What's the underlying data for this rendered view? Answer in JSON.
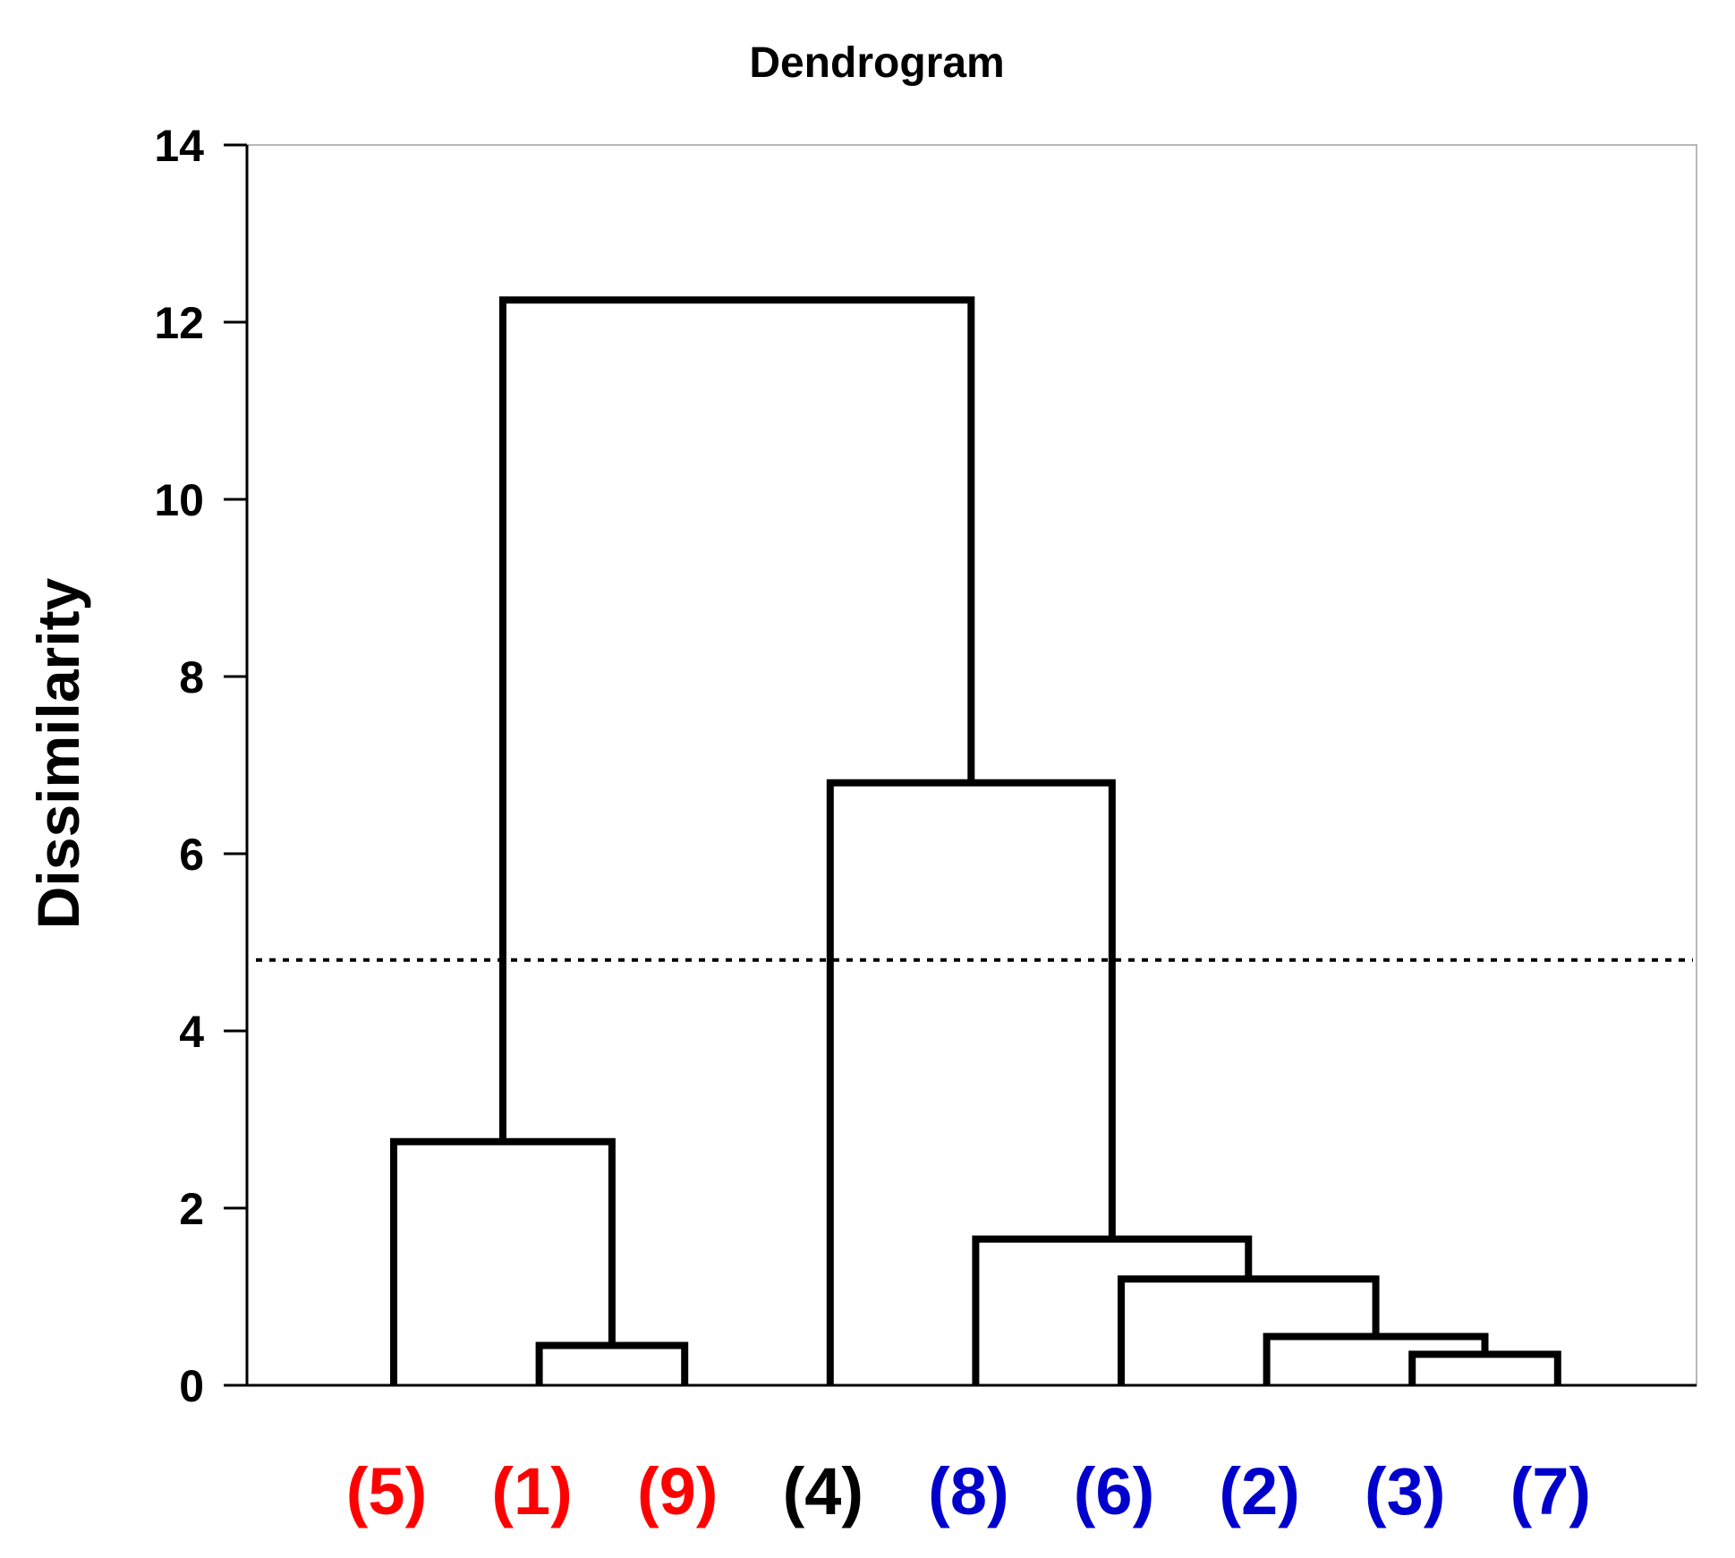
{
  "chart_data": {
    "type": "dendrogram",
    "title": "Dendrogram",
    "xlabel": "",
    "ylabel": "Dissimilarity",
    "ylim": [
      0,
      14
    ],
    "yticks": [
      0,
      2,
      4,
      6,
      8,
      10,
      12,
      14
    ],
    "cut_threshold": 4.8,
    "leaves": [
      {
        "label": "(5)",
        "color": "#ff0000"
      },
      {
        "label": "(1)",
        "color": "#ff0000"
      },
      {
        "label": "(9)",
        "color": "#ff0000"
      },
      {
        "label": "(4)",
        "color": "#000000"
      },
      {
        "label": "(8)",
        "color": "#0000cc"
      },
      {
        "label": "(6)",
        "color": "#0000cc"
      },
      {
        "label": "(2)",
        "color": "#0000cc"
      },
      {
        "label": "(3)",
        "color": "#0000cc"
      },
      {
        "label": "(7)",
        "color": "#0000cc"
      }
    ],
    "merges": [
      {
        "left": "(3)",
        "right": "(7)",
        "height": 0.35
      },
      {
        "left": "(1)",
        "right": "(9)",
        "height": 0.45
      },
      {
        "left": "(2)",
        "right": "(3)+(7)",
        "height": 0.55
      },
      {
        "left": "(6)",
        "right": "(2)+(3)+(7)",
        "height": 1.2
      },
      {
        "left": "(8)",
        "right": "(6)+(2)+(3)+(7)",
        "height": 1.65
      },
      {
        "left": "(5)",
        "right": "(1)+(9)",
        "height": 2.75
      },
      {
        "left": "(4)",
        "right": "(8)+(6)+(2)+(3)+(7)",
        "height": 6.8
      },
      {
        "left": "(5)+(1)+(9)",
        "right": "(4)+(8)+(6)+(2)+(3)+(7)",
        "height": 12.25
      }
    ]
  }
}
